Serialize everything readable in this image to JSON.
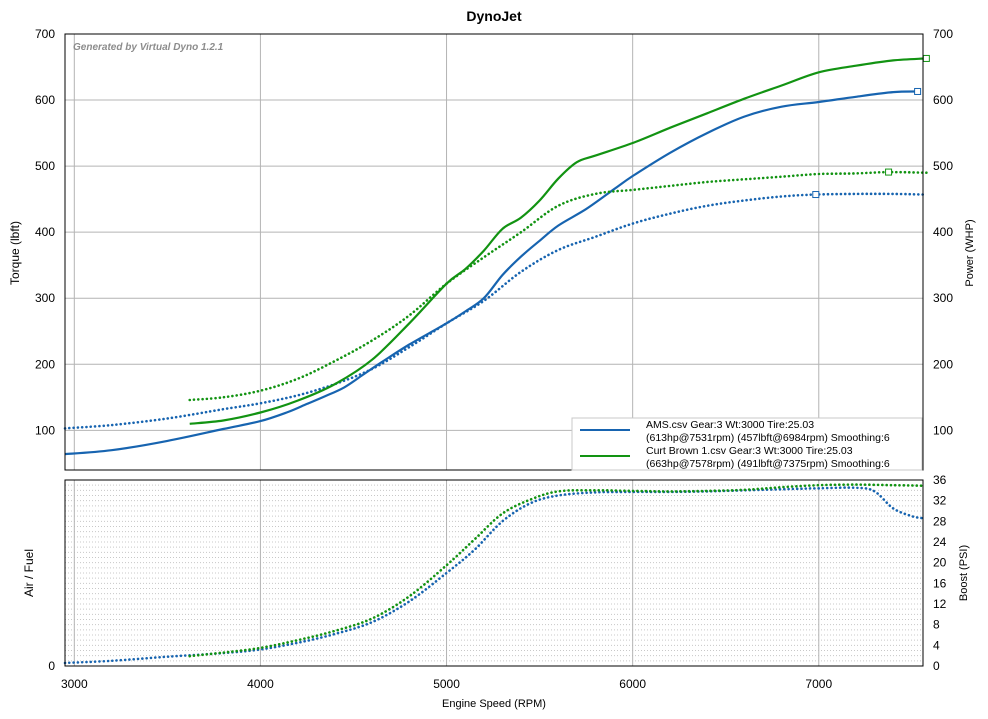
{
  "chart_data": [
    {
      "type": "line",
      "title": "DynoJet",
      "watermark": "Generated by Virtual Dyno 1.2.1",
      "xlabel": "Engine Speed (RPM)",
      "ylabel_left": "Torque (lbft)",
      "ylabel_right": "Power (WHP)",
      "xlim": [
        2950,
        7560
      ],
      "ylim": [
        40,
        700
      ],
      "x_ticks": [
        "3000",
        "4000",
        "5000",
        "6000",
        "7000"
      ],
      "x_tick_values": [
        3000,
        4000,
        5000,
        6000,
        7000
      ],
      "y_ticks": [
        "100",
        "200",
        "300",
        "400",
        "500",
        "600",
        "700"
      ],
      "y_tick_values": [
        100,
        200,
        300,
        400,
        500,
        600,
        700
      ],
      "grid": true,
      "legend_position": "bottom-right",
      "legend": [
        {
          "line1": "AMS.csv Gear:3 Wt:3000 Tire:25.03",
          "line2": "(613hp@7531rpm) (457lbft@6984rpm) Smoothing:6",
          "color": "#1764b0"
        },
        {
          "line1": "Curt Brown 1.csv Gear:3 Wt:3000 Tire:25.03",
          "line2": "(663hp@7578rpm) (491lbft@7375rpm) Smoothing:6",
          "color": "#129312"
        }
      ],
      "series": [
        {
          "measure": "power",
          "style": "solid",
          "color": "#1764b0",
          "peak_marker": [
            7531,
            613
          ],
          "x": [
            2950,
            3200,
            3500,
            3800,
            4000,
            4150,
            4250,
            4350,
            4450,
            4550,
            4650,
            4800,
            5000,
            5100,
            5200,
            5300,
            5400,
            5500,
            5600,
            5750,
            5900,
            6000,
            6200,
            6400,
            6600,
            6800,
            7000,
            7200,
            7400,
            7531
          ],
          "y": [
            64,
            70,
            84,
            102,
            114,
            128,
            140,
            152,
            165,
            184,
            203,
            230,
            262,
            280,
            300,
            335,
            363,
            387,
            410,
            435,
            465,
            485,
            520,
            550,
            575,
            590,
            597,
            605,
            612,
            613
          ]
        },
        {
          "measure": "torque",
          "style": "dotted",
          "color": "#1764b0",
          "peak_marker": [
            6984,
            457
          ],
          "x": [
            2950,
            3200,
            3500,
            3800,
            4000,
            4200,
            4400,
            4600,
            4800,
            5000,
            5200,
            5400,
            5600,
            5800,
            6000,
            6200,
            6400,
            6600,
            6800,
            6984,
            7200,
            7400,
            7560
          ],
          "y": [
            103,
            108,
            118,
            132,
            141,
            153,
            170,
            193,
            226,
            262,
            296,
            340,
            373,
            393,
            413,
            428,
            440,
            448,
            454,
            457,
            458,
            458,
            457
          ]
        },
        {
          "measure": "power",
          "style": "solid",
          "color": "#129312",
          "peak_marker": [
            7578,
            663
          ],
          "x": [
            3620,
            3800,
            4000,
            4200,
            4400,
            4600,
            4800,
            5000,
            5100,
            5200,
            5300,
            5400,
            5500,
            5600,
            5700,
            5800,
            6000,
            6200,
            6400,
            6600,
            6800,
            7000,
            7200,
            7400,
            7578
          ],
          "y": [
            110,
            115,
            127,
            145,
            170,
            207,
            262,
            322,
            344,
            372,
            405,
            422,
            448,
            481,
            506,
            516,
            535,
            558,
            580,
            602,
            622,
            642,
            652,
            660,
            663
          ]
        },
        {
          "measure": "torque",
          "style": "dotted",
          "color": "#129312",
          "peak_marker": [
            7375,
            491
          ],
          "x": [
            3620,
            3800,
            4000,
            4200,
            4400,
            4600,
            4800,
            5000,
            5200,
            5400,
            5600,
            5800,
            6000,
            6200,
            6400,
            6600,
            6800,
            7000,
            7200,
            7375,
            7578
          ],
          "y": [
            146,
            150,
            160,
            178,
            205,
            236,
            274,
            322,
            362,
            400,
            440,
            458,
            464,
            470,
            476,
            480,
            484,
            488,
            489,
            491,
            490
          ]
        }
      ]
    },
    {
      "type": "line",
      "xlabel": "Engine Speed (RPM)",
      "ylabel_left": "Air / Fuel",
      "ylabel_right": "Boost (PSI)",
      "xlim": [
        2950,
        7560
      ],
      "ylim": [
        0,
        36
      ],
      "left_ticks": [
        "0"
      ],
      "right_ticks": [
        "0",
        "4",
        "8",
        "12",
        "16",
        "20",
        "24",
        "28",
        "32",
        "36"
      ],
      "right_tick_values": [
        0,
        4,
        8,
        12,
        16,
        20,
        24,
        28,
        32,
        36
      ],
      "grid": true,
      "series": [
        {
          "measure": "boost",
          "style": "dotted",
          "color": "#1764b0",
          "x": [
            2950,
            3200,
            3500,
            3800,
            4000,
            4200,
            4400,
            4600,
            4800,
            5000,
            5150,
            5300,
            5450,
            5600,
            5800,
            6000,
            6200,
            6400,
            6600,
            6800,
            7000,
            7200,
            7300,
            7400,
            7500,
            7560
          ],
          "y": [
            0.6,
            1.0,
            1.8,
            2.5,
            3.2,
            4.5,
            6.2,
            8.5,
            12.5,
            18.0,
            22.5,
            28.0,
            31.5,
            33.0,
            33.6,
            33.7,
            33.7,
            33.8,
            34.0,
            34.2,
            34.4,
            34.5,
            33.8,
            30.5,
            29.0,
            28.6
          ]
        },
        {
          "measure": "boost",
          "style": "dotted",
          "color": "#129312",
          "x": [
            3620,
            3800,
            4000,
            4200,
            4400,
            4600,
            4800,
            5000,
            5150,
            5300,
            5450,
            5600,
            5800,
            6000,
            6200,
            6400,
            6600,
            6800,
            7000,
            7200,
            7400,
            7560
          ],
          "y": [
            1.9,
            2.6,
            3.5,
            5.0,
            6.8,
            9.2,
            13.5,
            19.5,
            24.5,
            29.5,
            32.2,
            33.8,
            34.0,
            33.9,
            33.8,
            33.9,
            34.1,
            34.6,
            35.0,
            35.1,
            35.0,
            34.9
          ]
        }
      ]
    }
  ]
}
